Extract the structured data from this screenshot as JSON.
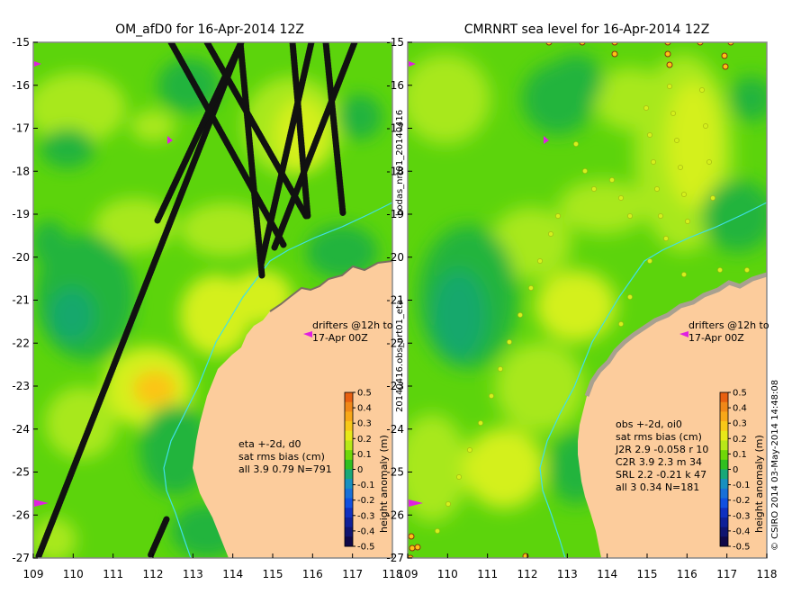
{
  "colors": {
    "land": "#FCCC9C",
    "coast_shelf": "#A8A090",
    "ocean_base": "#5CD40C",
    "ocean_light": "#A8E81C",
    "ocean_yellow": "#D4F01C",
    "ocean_dark": "#20B43C",
    "ocean_teal": "#18A86C",
    "ocean_orange": "#FCC414",
    "isobath": "#40E0E8",
    "drifter": "#E020E0",
    "track": "#111111",
    "frame": "#888888"
  },
  "x_ticks": [
    "109",
    "110",
    "111",
    "112",
    "113",
    "114",
    "115",
    "116",
    "117",
    "118"
  ],
  "y_ticks": [
    "-15",
    "-16",
    "-17",
    "-18",
    "-19",
    "-20",
    "-21",
    "-22",
    "-23",
    "-24",
    "-25",
    "-26",
    "-27"
  ],
  "colorbar": {
    "label": "height anomaly (m)",
    "ticks": [
      "0.5",
      "0.4",
      "0.3",
      "0.2",
      "0.1",
      "0",
      "-0.1",
      "-0.2",
      "-0.3",
      "-0.4",
      "-0.5"
    ],
    "colors": [
      "#E86010",
      "#F08818",
      "#F8A818",
      "#F8C818",
      "#E8E818",
      "#B8E818",
      "#70D808",
      "#30C020",
      "#18A878",
      "#1890C0",
      "#1870D8",
      "#1050E0",
      "#1030C0",
      "#102098",
      "#101470",
      "#100848"
    ]
  },
  "left_panel": {
    "title": "OM_afD0 for 16-Apr-2014 12Z",
    "drifter_note_1": "drifters @12h to",
    "drifter_note_2": "17-Apr 00Z",
    "stats": [
      "eta +-2d, d0",
      "sat rms bias (cm)",
      "all 3.9 0.79 N=791"
    ]
  },
  "right_panel": {
    "title": "CMRNRT sea level  for 16-Apr-2014 12Z",
    "drifter_note_1": "drifters @12h to",
    "drifter_note_2": "17-Apr 00Z",
    "stats": [
      "obs +-2d, oi0",
      "sat rms bias (cm)",
      "J2R   2.9 -0.058 r 10",
      "C2R   3.9 2.3 m 34",
      "SRL   2.2 -0.21 k 47",
      "all    3 0.34 N=181"
    ]
  },
  "side_labels": {
    "middle_top": "bodas_nrt01_20140416",
    "middle_bottom": "20140416.obs_nrt01_eta",
    "right": "© CSIRO 2014   03-May-2014 14:48:08"
  }
}
